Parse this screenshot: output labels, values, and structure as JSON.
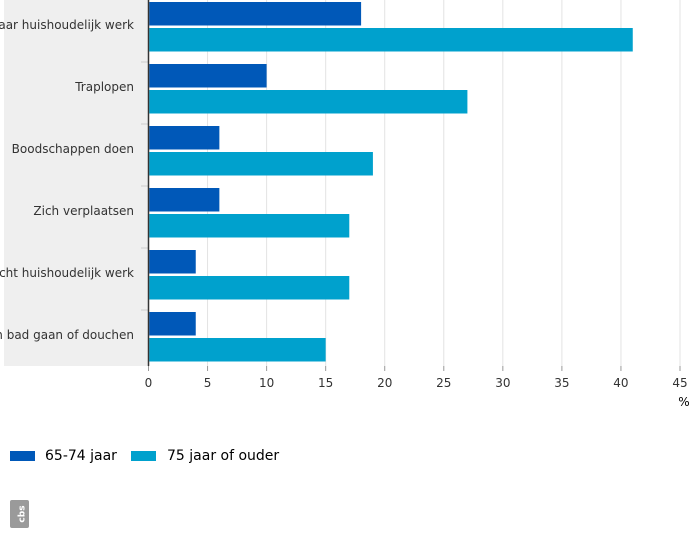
{
  "chart_data": {
    "type": "bar",
    "orientation": "horizontal",
    "categories": [
      "Zwaar huishoudelijk werk",
      "Traplopen",
      "Boodschappen doen",
      "Zich verplaatsen",
      "Licht huishoudelijk werk",
      "In bad gaan of douchen"
    ],
    "series": [
      {
        "name": "65-74 jaar",
        "values": [
          18,
          10,
          6,
          6,
          4,
          4
        ]
      },
      {
        "name": "75 jaar of ouder",
        "values": [
          41,
          27,
          19,
          17,
          17,
          15
        ]
      }
    ],
    "xlabel": "%",
    "xlim": [
      0,
      45
    ],
    "xticks": [
      0,
      5,
      10,
      15,
      20,
      25,
      30,
      35,
      40,
      45
    ],
    "grid": true,
    "legend_position": "bottom-left"
  },
  "colors": {
    "series_1": "#0058b8",
    "series_2": "#00a1cd",
    "grid": "#e3e3e3",
    "category_band": "#efefef",
    "axis": "#333333",
    "logo": "#9a9a9a"
  },
  "logo": {
    "icon": "cbs-logo-icon",
    "text": "cbs"
  }
}
